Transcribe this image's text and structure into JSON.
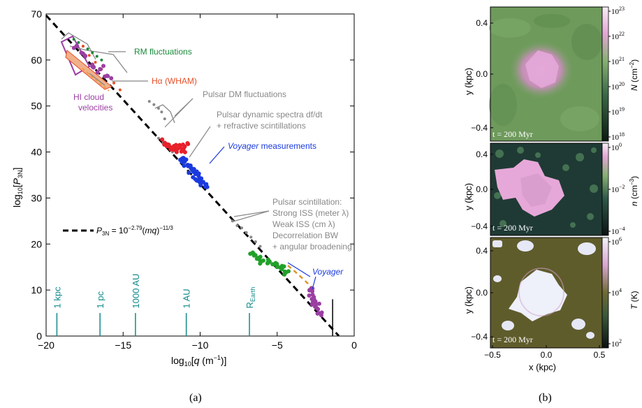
{
  "panels": {
    "a_caption": "(a)",
    "b_caption": "(b)"
  },
  "chart_data": [
    {
      "type": "scatter",
      "panel": "a",
      "xlabel": "log10[q (m−1)]",
      "ylabel": "log10[P3N]",
      "xlim": [
        -20,
        0
      ],
      "ylim": [
        0,
        70
      ],
      "x_ticks": [
        -20,
        -15,
        -10,
        -5,
        0
      ],
      "y_ticks": [
        0,
        10,
        20,
        30,
        40,
        50,
        60,
        70
      ],
      "x_tick_labels": [
        "−20",
        "−15",
        "−10",
        "−5",
        "0"
      ],
      "y_tick_labels": [
        "0",
        "10",
        "20",
        "30",
        "40",
        "50",
        "60",
        "70"
      ],
      "grid": false,
      "legend_position": "middle-left",
      "fit_line": {
        "label_lhs": "P3N",
        "label_rhs": "= 10−2.79(mq)−11/3",
        "intercept": 69.7,
        "slope": -3.6667,
        "color": "#000000",
        "dash": true
      },
      "scale_markers": [
        {
          "label": "1 kpc",
          "x": -19.3
        },
        {
          "label": "1 pc",
          "x": -16.5
        },
        {
          "label": "1000 AU",
          "x": -14.2
        },
        {
          "label": "1 AU",
          "x": -10.9
        },
        {
          "label": "REarth",
          "x": -6.8
        }
      ],
      "series": [
        {
          "name": "RM fluctuations",
          "color": "#1a8a3a",
          "x": [
            -18.2,
            -17.9,
            -17.6,
            -17.3,
            -17.0,
            -16.7,
            -16.4
          ],
          "y": [
            64.5,
            63.8,
            63.0,
            62.4,
            61.6,
            60.8,
            60.0
          ]
        },
        {
          "name": "Hα (WHAM)",
          "color": "#e8502a",
          "x": [
            -17.6,
            -17.2,
            -16.8,
            -16.4,
            -16.0,
            -15.6,
            -15.2
          ],
          "y": [
            63.0,
            61.0,
            59.5,
            58.0,
            56.5,
            55.0,
            53.5
          ]
        },
        {
          "name": "HI cloud velocities",
          "color": "#9b3fa3",
          "x": [
            -18.0,
            -17.5,
            -17.0,
            -16.5,
            -16.0
          ],
          "y": [
            63.0,
            61.0,
            59.0,
            58.0,
            56.5
          ]
        },
        {
          "name": "Pulsar DM fluctuations",
          "color": "#888888",
          "x": [
            -13.3,
            -13.0,
            -12.7,
            -12.5,
            -12.3
          ],
          "y": [
            51.0,
            50.3,
            49.5,
            48.7,
            47.2
          ]
        },
        {
          "name": "Pulsar dynamic spectra df/dt + refractive scintillations",
          "color": "#888888",
          "x": [
            -12.7,
            -12.4,
            -11.8,
            -11.0,
            -10.6
          ],
          "y": [
            43.0,
            42.0,
            40.0,
            37.5,
            36.0
          ]
        },
        {
          "name": "pulsar-dm-red",
          "color": "#e8202a",
          "x": [
            -12.3,
            -12.1,
            -11.9,
            -11.7,
            -11.5,
            -11.3,
            -11.1,
            -11.0
          ],
          "y": [
            42.0,
            41.5,
            41.0,
            41.3,
            40.6,
            41.0,
            40.5,
            41.2
          ]
        },
        {
          "name": "Voyager measurements",
          "color": "#1a3adf",
          "x": [
            -11.2,
            -11.0,
            -10.8,
            -10.6,
            -10.5,
            -10.3,
            -10.1,
            -10.0,
            -9.8,
            -9.6
          ],
          "y": [
            38.5,
            38.0,
            37.2,
            36.5,
            36.0,
            35.2,
            34.8,
            34.0,
            33.5,
            33.0
          ]
        },
        {
          "name": "Pulsar scintillation",
          "color": "#888888",
          "x": [
            -7.9,
            -7.6,
            -7.3,
            -7.0,
            -6.7,
            -6.4,
            -6.1
          ],
          "y": [
            25.0,
            24.0,
            23.5,
            22.5,
            21.5,
            20.5,
            19.5
          ]
        },
        {
          "name": "voyager-green",
          "color": "#22a02a",
          "x": [
            -6.5,
            -6.2,
            -5.9,
            -5.6,
            -5.3,
            -5.0,
            -4.7,
            -4.5
          ],
          "y": [
            17.5,
            17.0,
            16.4,
            16.0,
            15.6,
            15.0,
            14.5,
            14.0
          ]
        },
        {
          "name": "Voyager",
          "color": "#9b3fa3",
          "x": [
            -2.9,
            -2.7,
            -2.6,
            -2.5,
            -2.4,
            -2.3
          ],
          "y": [
            10.0,
            9.0,
            8.0,
            7.0,
            6.0,
            5.0
          ]
        }
      ],
      "annotations": [
        {
          "text": "RM fluctuations",
          "color": "#1a8a3a"
        },
        {
          "text": "Hα (WHAM)",
          "color": "#e8502a"
        },
        {
          "text": "HI cloud",
          "color": "#9b3fa3"
        },
        {
          "text": "velocities",
          "color": "#9b3fa3"
        },
        {
          "text": "Pulsar DM fluctuations",
          "color": "#888888"
        },
        {
          "text": "Pulsar dynamic spectra df/dt",
          "color": "#888888"
        },
        {
          "text": "+ refractive scintillations",
          "color": "#888888"
        },
        {
          "text": "Voyager measurements",
          "color": "#1a3adf",
          "italic_prefix": "Voyager",
          "rest": " measurements"
        },
        {
          "text": "Pulsar scintillation:",
          "color": "#888888"
        },
        {
          "text": "Strong ISS (meter λ)",
          "color": "#888888"
        },
        {
          "text": "Weak ISS (cm λ)",
          "color": "#888888"
        },
        {
          "text": "Decorrelation BW",
          "color": "#888888"
        },
        {
          "text": "+ angular broadening",
          "color": "#888888"
        },
        {
          "text": "Voyager",
          "color": "#1a3adf"
        }
      ]
    },
    {
      "type": "heatmap",
      "panel": "b",
      "subpanels": [
        {
          "id": "N",
          "ylabel": "y  (kpc)",
          "y_ticks": [
            "0.4",
            "0.0",
            "−0.4"
          ],
          "time_label": "t = 200 Myr",
          "colorbar_label": "N (cm−2)",
          "colorbar_ticks": [
            "1023",
            "1022",
            "1021",
            "1020",
            "1019",
            "1018"
          ],
          "colors": [
            "#5a8a4a",
            "#6fa060",
            "#c77bb8"
          ]
        },
        {
          "id": "n",
          "ylabel": "y  (kpc)",
          "y_ticks": [
            "0.4",
            "0.0",
            "−0.4"
          ],
          "time_label": "t = 200 Myr",
          "colorbar_label": "n (cm−3)",
          "colorbar_ticks": [
            "100",
            "10−2",
            "10−4"
          ],
          "colors": [
            "#1a2a2a",
            "#2f5a4a",
            "#e6a6d6"
          ]
        },
        {
          "id": "T",
          "ylabel": "y  (kpc)",
          "y_ticks": [
            "0.4",
            "0.0",
            "−0.4"
          ],
          "time_label": "t = 200 Myr",
          "colorbar_label": "T (K)",
          "colorbar_ticks": [
            "106",
            "104",
            "102"
          ],
          "colors": [
            "#5e5a2a",
            "#e8eaf6",
            "#c77bb8"
          ]
        }
      ],
      "xlabel": "x  (kpc)",
      "x_ticks": [
        "−0.5",
        "0.0",
        "0.5"
      ]
    }
  ]
}
